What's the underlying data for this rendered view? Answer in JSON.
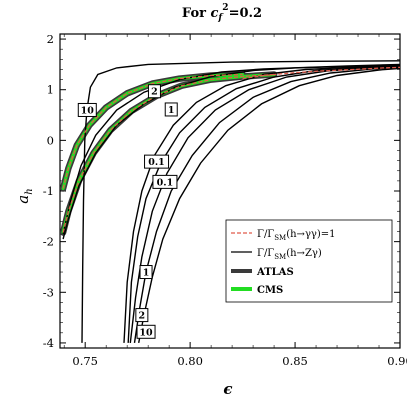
{
  "chart_data": {
    "type": "line",
    "title": "For c_f²=0.2",
    "title_parts": {
      "prefix": "For ",
      "var": "c",
      "sub": "f",
      "sup": "2",
      "suffix": "=0.2"
    },
    "xlabel": "ϵ",
    "ylabel": {
      "base": "a",
      "sub": "h"
    },
    "xlim": [
      0.738,
      0.9
    ],
    "ylim": [
      -4.1,
      2.1
    ],
    "x_ticks": [
      0.75,
      0.8,
      0.85,
      0.9
    ],
    "x_tick_labels": [
      "0.75",
      "0.80",
      "0.85",
      "0.90"
    ],
    "y_ticks": [
      -4,
      -3,
      -2,
      -1,
      0,
      1,
      2
    ],
    "y_tick_labels": [
      "-4",
      "-3",
      "-2",
      "-1",
      "0",
      "1",
      "2"
    ],
    "grid": false,
    "legend_placement": "lower-right",
    "legend": [
      {
        "label": "Γ/Γ_SM(h→γγ)=1",
        "style": "dashed",
        "color": "#e05a4a"
      },
      {
        "label": "Γ/Γ_SM(h→Zγ)",
        "style": "solid",
        "color": "#000000"
      },
      {
        "label": "ATLAS",
        "style": "thick",
        "color": "#333333"
      },
      {
        "label": "CMS",
        "style": "thick",
        "color": "#22dd22"
      }
    ],
    "legend_text": {
      "gg": {
        "pre": "Γ/Γ",
        "sub": "SM",
        "post": "(h→γγ)=1"
      },
      "zg": {
        "pre": "Γ/Γ",
        "sub": "SM",
        "post": "(h→Zγ)"
      },
      "atlas": "ATLAS",
      "cms": "CMS"
    },
    "colors": {
      "atlas": "#3a3a3a",
      "cms": "#22dd22",
      "gamma_gamma": "#e05a4a",
      "z_gamma": "#000000"
    },
    "contour_labels": [
      "10",
      "2",
      "1",
      "0.1",
      "0.1",
      "1",
      "2",
      "10"
    ],
    "contours": [
      {
        "label": "10",
        "label_at": [
          0.751,
          0.6
        ],
        "points": [
          [
            0.7485,
            -4.0
          ],
          [
            0.7488,
            -2.5
          ],
          [
            0.7492,
            -1.2
          ],
          [
            0.7498,
            0.0
          ],
          [
            0.7508,
            0.6
          ],
          [
            0.7525,
            1.05
          ],
          [
            0.756,
            1.3
          ],
          [
            0.765,
            1.43
          ],
          [
            0.78,
            1.5
          ],
          [
            0.82,
            1.545
          ],
          [
            0.86,
            1.56
          ],
          [
            0.9,
            1.57
          ]
        ]
      },
      {
        "label": "2",
        "label_at": [
          0.783,
          0.97
        ],
        "points": [
          [
            0.7395,
            -1.85
          ],
          [
            0.743,
            -1.2
          ],
          [
            0.748,
            -0.5
          ],
          [
            0.755,
            0.1
          ],
          [
            0.765,
            0.6
          ],
          [
            0.778,
            0.95
          ],
          [
            0.795,
            1.2
          ],
          [
            0.815,
            1.35
          ],
          [
            0.835,
            1.41
          ],
          [
            0.855,
            1.44
          ],
          [
            0.875,
            1.47
          ],
          [
            0.9,
            1.5
          ]
        ]
      },
      {
        "label": "1",
        "label_at": [
          0.791,
          0.61
        ],
        "points": [
          [
            0.7395,
            -1.95
          ],
          [
            0.742,
            -1.55
          ],
          [
            0.747,
            -0.9
          ],
          [
            0.755,
            -0.25
          ],
          [
            0.765,
            0.3
          ],
          [
            0.778,
            0.72
          ],
          [
            0.793,
            1.05
          ],
          [
            0.81,
            1.26
          ],
          [
            0.83,
            1.38
          ],
          [
            0.85,
            1.43
          ],
          [
            0.875,
            1.46
          ],
          [
            0.9,
            1.49
          ]
        ]
      },
      {
        "label": "0.1",
        "label_at": [
          0.784,
          -0.42
        ],
        "points": [
          [
            0.7685,
            -4.0
          ],
          [
            0.77,
            -2.8
          ],
          [
            0.773,
            -1.8
          ],
          [
            0.777,
            -1.0
          ],
          [
            0.783,
            -0.3
          ],
          [
            0.792,
            0.3
          ],
          [
            0.803,
            0.75
          ],
          [
            0.817,
            1.08
          ],
          [
            0.835,
            1.3
          ],
          [
            0.855,
            1.4
          ],
          [
            0.875,
            1.44
          ],
          [
            0.9,
            1.47
          ]
        ]
      },
      {
        "label": "0.1",
        "label_at": [
          0.788,
          -0.82
        ],
        "points": [
          [
            0.7705,
            -4.0
          ],
          [
            0.772,
            -2.8
          ],
          [
            0.775,
            -1.9
          ],
          [
            0.779,
            -1.15
          ],
          [
            0.786,
            -0.45
          ],
          [
            0.795,
            0.15
          ],
          [
            0.807,
            0.65
          ],
          [
            0.822,
            1.02
          ],
          [
            0.84,
            1.25
          ],
          [
            0.86,
            1.38
          ],
          [
            0.88,
            1.43
          ],
          [
            0.9,
            1.46
          ]
        ]
      },
      {
        "label": "1",
        "label_at": [
          0.779,
          -2.6
        ],
        "points": [
          [
            0.7715,
            -4.0
          ],
          [
            0.774,
            -3.1
          ],
          [
            0.777,
            -2.3
          ],
          [
            0.782,
            -1.4
          ],
          [
            0.789,
            -0.65
          ],
          [
            0.799,
            0.05
          ],
          [
            0.812,
            0.6
          ],
          [
            0.828,
            1.0
          ],
          [
            0.846,
            1.25
          ],
          [
            0.865,
            1.37
          ],
          [
            0.885,
            1.43
          ],
          [
            0.9,
            1.45
          ]
        ]
      },
      {
        "label": "2",
        "label_at": [
          0.777,
          -3.45
        ],
        "points": [
          [
            0.7735,
            -4.0
          ],
          [
            0.776,
            -3.3
          ],
          [
            0.779,
            -2.6
          ],
          [
            0.784,
            -1.8
          ],
          [
            0.791,
            -1.0
          ],
          [
            0.801,
            -0.3
          ],
          [
            0.814,
            0.35
          ],
          [
            0.83,
            0.85
          ],
          [
            0.848,
            1.16
          ],
          [
            0.867,
            1.33
          ],
          [
            0.887,
            1.41
          ],
          [
            0.9,
            1.44
          ]
        ]
      },
      {
        "label": "10",
        "label_at": [
          0.779,
          -3.78
        ],
        "points": [
          [
            0.7755,
            -4.0
          ],
          [
            0.778,
            -3.45
          ],
          [
            0.782,
            -2.7
          ],
          [
            0.787,
            -1.95
          ],
          [
            0.795,
            -1.15
          ],
          [
            0.805,
            -0.45
          ],
          [
            0.818,
            0.2
          ],
          [
            0.834,
            0.72
          ],
          [
            0.852,
            1.08
          ],
          [
            0.87,
            1.28
          ],
          [
            0.89,
            1.39
          ],
          [
            0.9,
            1.42
          ]
        ]
      }
    ],
    "bands": [
      {
        "name": "ATLAS",
        "color": "#3a3a3a",
        "points": [
          [
            0.7395,
            -0.95
          ],
          [
            0.742,
            -0.55
          ],
          [
            0.746,
            -0.1
          ],
          [
            0.752,
            0.3
          ],
          [
            0.76,
            0.65
          ],
          [
            0.77,
            0.93
          ],
          [
            0.782,
            1.12
          ],
          [
            0.795,
            1.22
          ],
          [
            0.81,
            1.28
          ],
          [
            0.825,
            1.3
          ]
        ]
      },
      {
        "name": "ATLAS",
        "color": "#3a3a3a",
        "points": [
          [
            0.7395,
            -1.82
          ],
          [
            0.742,
            -1.4
          ],
          [
            0.747,
            -0.8
          ],
          [
            0.754,
            -0.25
          ],
          [
            0.762,
            0.2
          ],
          [
            0.772,
            0.58
          ],
          [
            0.784,
            0.88
          ],
          [
            0.796,
            1.08
          ],
          [
            0.81,
            1.2
          ],
          [
            0.825,
            1.26
          ],
          [
            0.84,
            1.3
          ]
        ]
      },
      {
        "name": "CMS",
        "color": "#22dd22",
        "points": [
          [
            0.7395,
            -0.95
          ],
          [
            0.742,
            -0.55
          ],
          [
            0.746,
            -0.1
          ],
          [
            0.752,
            0.3
          ],
          [
            0.76,
            0.65
          ],
          [
            0.77,
            0.93
          ],
          [
            0.782,
            1.12
          ],
          [
            0.795,
            1.22
          ],
          [
            0.81,
            1.28
          ],
          [
            0.825,
            1.3
          ]
        ]
      },
      {
        "name": "CMS",
        "color": "#22dd22",
        "points": [
          [
            0.7395,
            -1.82
          ],
          [
            0.742,
            -1.4
          ],
          [
            0.747,
            -0.8
          ],
          [
            0.754,
            -0.25
          ],
          [
            0.762,
            0.2
          ],
          [
            0.772,
            0.58
          ],
          [
            0.784,
            0.88
          ],
          [
            0.796,
            1.08
          ],
          [
            0.81,
            1.2
          ],
          [
            0.825,
            1.26
          ],
          [
            0.84,
            1.3
          ]
        ]
      }
    ],
    "gamma_gamma_curves": [
      {
        "name": "Γ/Γ_SM(h→γγ)=1",
        "points": [
          [
            0.7395,
            -0.95
          ],
          [
            0.742,
            -0.55
          ],
          [
            0.746,
            -0.1
          ],
          [
            0.752,
            0.3
          ],
          [
            0.76,
            0.65
          ],
          [
            0.77,
            0.93
          ],
          [
            0.782,
            1.12
          ],
          [
            0.795,
            1.22
          ],
          [
            0.81,
            1.28
          ],
          [
            0.825,
            1.3
          ]
        ]
      },
      {
        "name": "Γ/Γ_SM(h→γγ)=1",
        "points": [
          [
            0.7395,
            -1.82
          ],
          [
            0.742,
            -1.4
          ],
          [
            0.747,
            -0.8
          ],
          [
            0.754,
            -0.25
          ],
          [
            0.762,
            0.2
          ],
          [
            0.772,
            0.58
          ],
          [
            0.784,
            0.88
          ],
          [
            0.796,
            1.08
          ],
          [
            0.81,
            1.2
          ],
          [
            0.825,
            1.26
          ],
          [
            0.84,
            1.3
          ]
        ]
      },
      {
        "name": "Γ/Γ_SM(h→γγ)=1",
        "points": [
          [
            0.825,
            1.22
          ],
          [
            0.835,
            1.28
          ],
          [
            0.848,
            1.33
          ],
          [
            0.862,
            1.37
          ],
          [
            0.878,
            1.4
          ],
          [
            0.892,
            1.43
          ],
          [
            0.9,
            1.44
          ]
        ]
      }
    ]
  }
}
